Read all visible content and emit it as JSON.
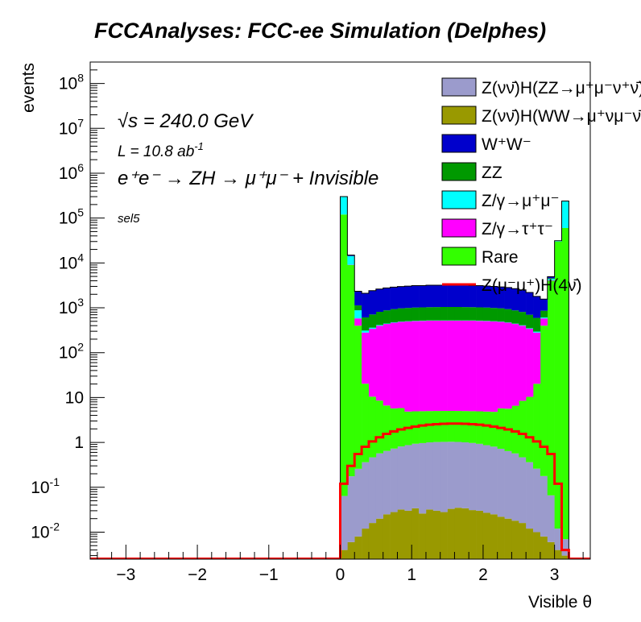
{
  "title": "FCCAnalyses: FCC-ee Simulation (Delphes)",
  "chart_data": {
    "type": "histogram-stacked-area",
    "xlabel": "Visible θ",
    "ylabel": "events",
    "xlim": [
      -3.5,
      3.5
    ],
    "ylim": [
      0.0025,
      300000000
    ],
    "log_y": true,
    "xticks": [
      "−3",
      "−2",
      "−1",
      "0",
      "1",
      "2",
      "3"
    ],
    "yticks": [
      "10^-2",
      "10^-1",
      "1",
      "10",
      "10^2",
      "10^3",
      "10^4",
      "10^5",
      "10^6",
      "10^7",
      "10^8"
    ],
    "annotations": {
      "sqrt_s": "√s = 240.0 GeV",
      "lumi_prefix": "L = 10.8 ab",
      "lumi_exp": "-1",
      "process": "e⁺e⁻ → ZH → μ⁺μ⁻ + Invisible",
      "selection": "sel5"
    },
    "legend_position": "top-right",
    "x_edges": [
      0.0,
      0.1,
      0.2,
      0.3,
      0.4,
      0.5,
      0.6,
      0.7,
      0.8,
      0.9,
      1.0,
      1.1,
      1.2,
      1.3,
      1.4,
      1.5,
      1.6,
      1.7,
      1.8,
      1.9,
      2.0,
      2.1,
      2.2,
      2.3,
      2.4,
      2.5,
      2.6,
      2.7,
      2.8,
      2.9,
      3.0,
      3.1,
      3.2
    ],
    "series": [
      {
        "name": "Z(νν̄)H(ZZ→μ⁺μ⁻ν⁺ν̄)",
        "color": "#9b9bcc",
        "values": [
          0.06,
          0.17,
          0.25,
          0.35,
          0.45,
          0.55,
          0.62,
          0.7,
          0.78,
          0.84,
          0.9,
          0.94,
          0.97,
          0.99,
          1.0,
          1.0,
          0.99,
          0.97,
          0.94,
          0.9,
          0.84,
          0.78,
          0.7,
          0.62,
          0.55,
          0.45,
          0.35,
          0.25,
          0.17,
          0.06,
          0.008,
          0.004
        ]
      },
      {
        "name": "Z(νν̄)H(WW→μ⁺νμ⁻ν̄)",
        "color": "#999900",
        "values": [
          0.004,
          0.006,
          0.008,
          0.012,
          0.016,
          0.02,
          0.025,
          0.028,
          0.032,
          0.03,
          0.034,
          0.026,
          0.032,
          0.03,
          0.028,
          0.033,
          0.035,
          0.034,
          0.031,
          0.03,
          0.027,
          0.025,
          0.022,
          0.02,
          0.018,
          0.016,
          0.012,
          0.01,
          0.008,
          0.006,
          0.004,
          0.003
        ]
      },
      {
        "name": "W⁺W⁻",
        "color": "#0000cc",
        "values": [
          150,
          700,
          1200,
          1500,
          1700,
          1800,
          1900,
          1950,
          2000,
          2050,
          2100,
          2100,
          2150,
          2150,
          2150,
          2200,
          2150,
          2150,
          2100,
          2100,
          2050,
          2000,
          1950,
          1900,
          1800,
          1700,
          1500,
          1200,
          700,
          400,
          150,
          100
        ]
      },
      {
        "name": "ZZ",
        "color": "#009900",
        "values": [
          40,
          150,
          250,
          300,
          350,
          400,
          430,
          460,
          480,
          490,
          500,
          505,
          510,
          515,
          520,
          520,
          520,
          515,
          510,
          505,
          500,
          490,
          480,
          460,
          430,
          400,
          350,
          300,
          250,
          150,
          60,
          40
        ]
      },
      {
        "name": "Z/γ→μ⁺μ⁻",
        "color": "#00ffff",
        "values": [
          180000,
          5000,
          300,
          30,
          20,
          15,
          10,
          10,
          8,
          8,
          8,
          8,
          8,
          8,
          8,
          8,
          8,
          8,
          8,
          8,
          8,
          8,
          8,
          8,
          8,
          10,
          10,
          15,
          30,
          300,
          1000,
          180000
        ]
      },
      {
        "name": "Z/γ→τ⁺τ⁻",
        "color": "#ff00ff",
        "values": [
          45,
          100,
          180,
          260,
          330,
          390,
          430,
          460,
          480,
          490,
          500,
          505,
          510,
          510,
          510,
          510,
          510,
          510,
          510,
          505,
          500,
          490,
          480,
          460,
          430,
          390,
          330,
          260,
          180,
          100,
          50,
          35
        ]
      },
      {
        "name": "Rare",
        "color": "#33ff00",
        "values": [
          120000,
          9000,
          400,
          20,
          10,
          8,
          6,
          5,
          5,
          4,
          4,
          4,
          4,
          4,
          4,
          4,
          4,
          4,
          4,
          4,
          4,
          4,
          5,
          5,
          6,
          8,
          10,
          20,
          400,
          4000,
          30000,
          60000
        ]
      },
      {
        "name": "Z(μ⁻μ⁺)H(4ν̄)",
        "color": "#ff0000",
        "line": true,
        "values": [
          0.12,
          0.3,
          0.55,
          0.8,
          1.05,
          1.3,
          1.55,
          1.75,
          1.95,
          2.1,
          2.25,
          2.38,
          2.48,
          2.55,
          2.6,
          2.62,
          2.62,
          2.6,
          2.55,
          2.48,
          2.38,
          2.25,
          2.1,
          1.95,
          1.75,
          1.55,
          1.3,
          1.05,
          0.8,
          0.55,
          0.12,
          0.004
        ]
      }
    ],
    "legend_order": [
      0,
      1,
      2,
      3,
      4,
      5,
      6,
      7
    ]
  }
}
